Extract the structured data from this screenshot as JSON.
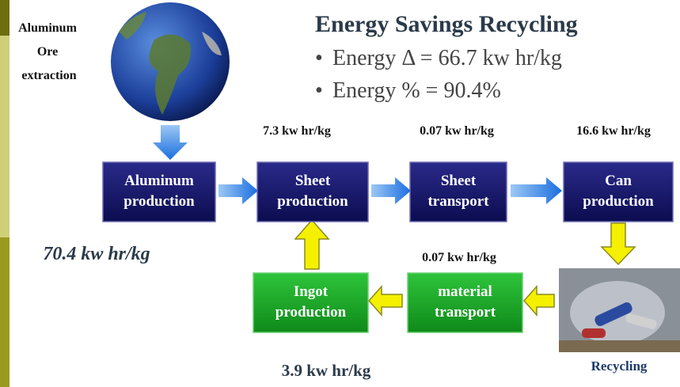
{
  "title": "Energy Savings Recycling",
  "bullets": [
    "Energy Δ = 66.7 kw hr/kg",
    "Energy % = 90.4%"
  ],
  "source": {
    "lines": [
      "Aluminum",
      "Ore",
      "extraction"
    ]
  },
  "nodes": [
    {
      "lines": [
        "Aluminum",
        "production"
      ]
    },
    {
      "lines": [
        "Sheet",
        "production"
      ]
    },
    {
      "lines": [
        "Sheet",
        "transport"
      ]
    },
    {
      "lines": [
        "Can",
        "production"
      ]
    },
    {
      "lines": [
        "Ingot",
        "production"
      ]
    },
    {
      "lines": [
        "material",
        "transport"
      ]
    }
  ],
  "energy_labels": [
    "7.3 kw hr/kg",
    "0.07 kw hr/kg",
    "16.6 kw hr/kg",
    "70.4 kw hr/kg",
    "0.07 kw hr/kg",
    "3.9 kw hr/kg"
  ],
  "image_caption": "Recycling"
}
